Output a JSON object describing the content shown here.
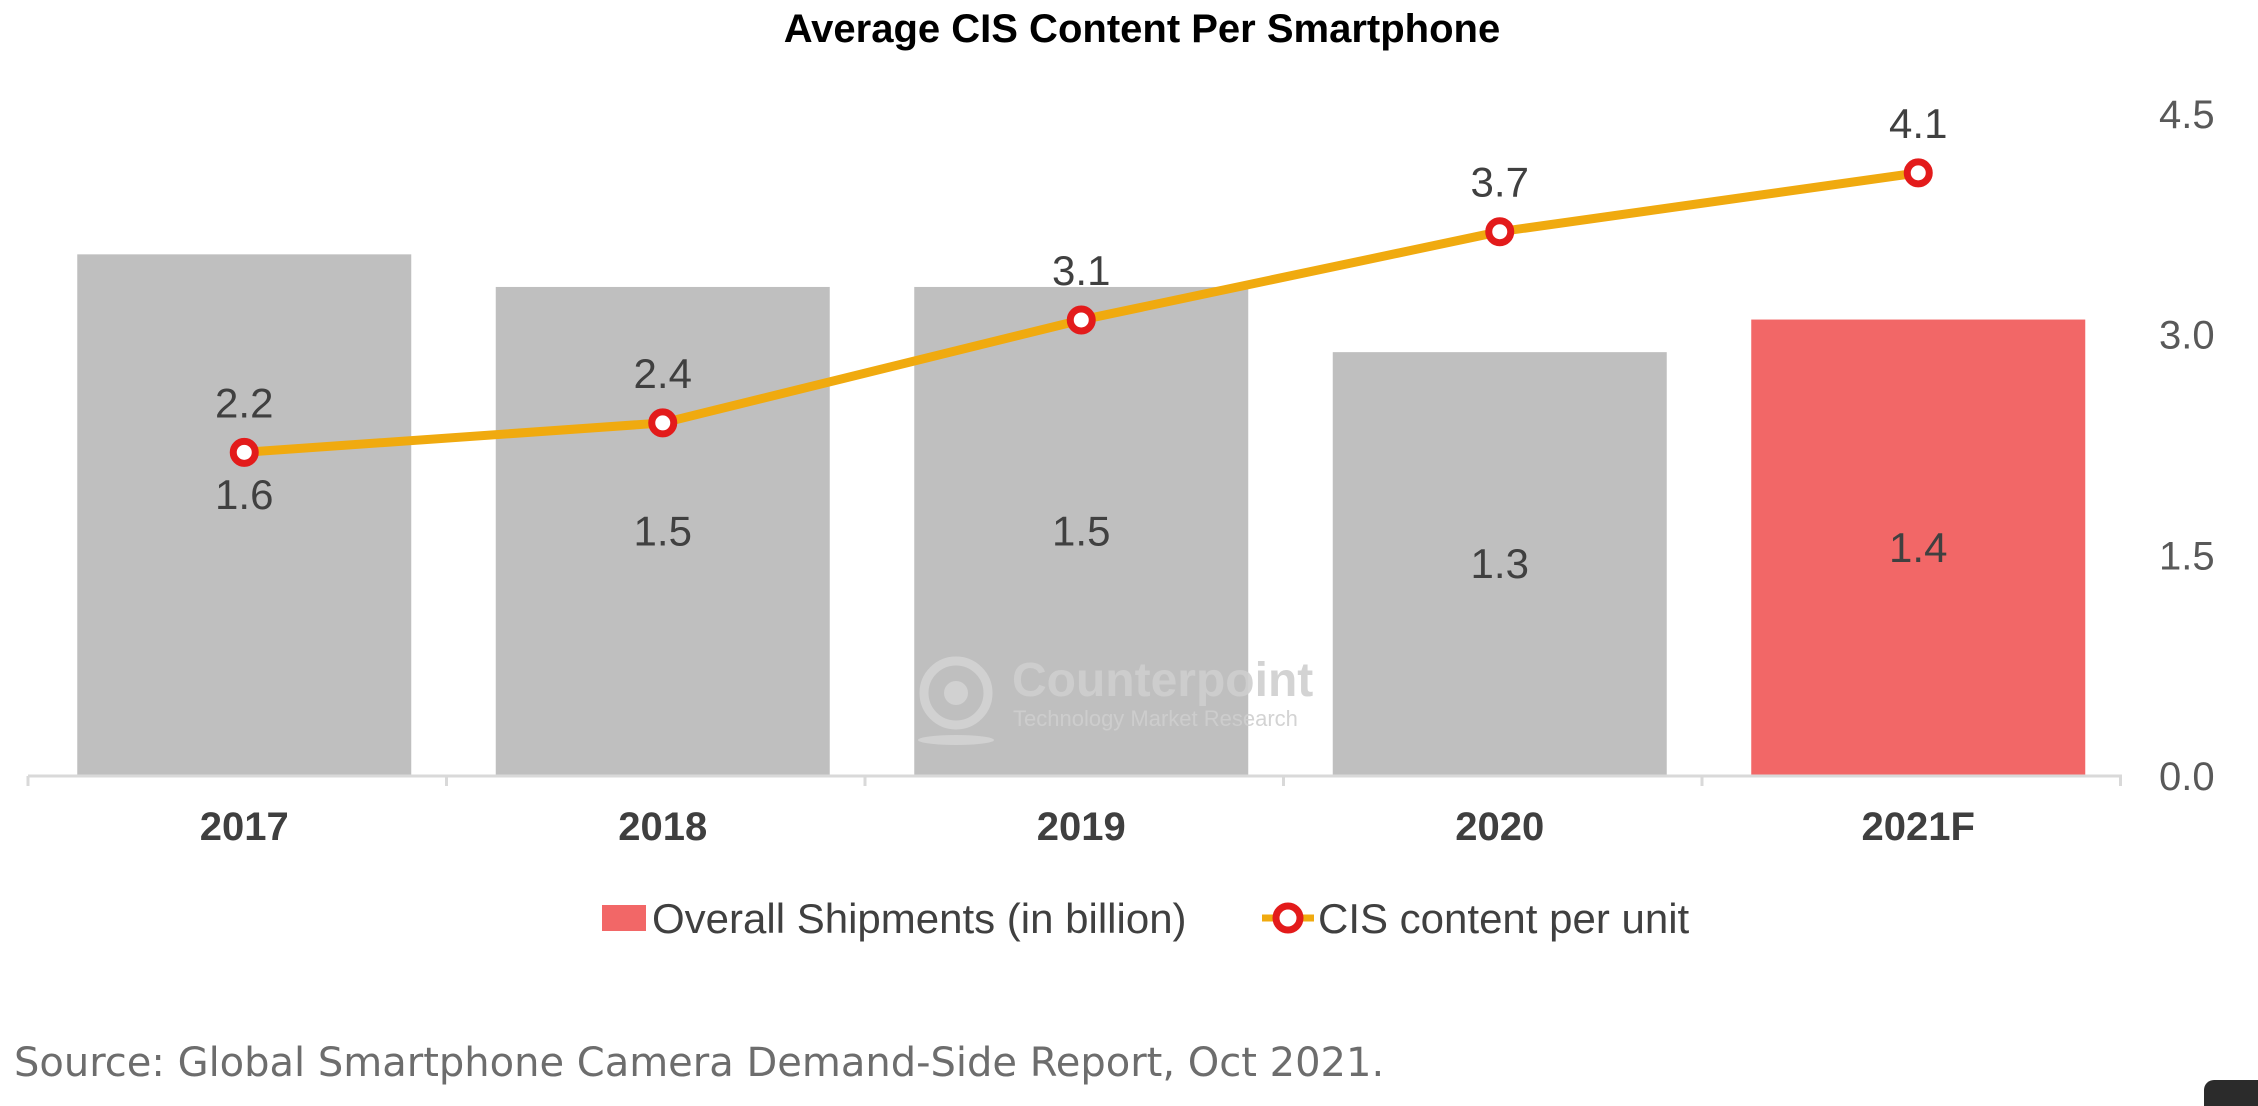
{
  "chart_data": {
    "type": "bar",
    "title": "Average CIS Content Per Smartphone",
    "categories": [
      "2017",
      "2018",
      "2019",
      "2020",
      "2021F"
    ],
    "bar_series": {
      "name": "Overall Shipments (in billion)",
      "values": [
        1.6,
        1.5,
        1.5,
        1.3,
        1.4
      ],
      "value_labels": [
        "1.6",
        "1.5",
        "1.5",
        "1.3",
        "1.4"
      ],
      "colors": [
        "#bfbfbf",
        "#bfbfbf",
        "#bfbfbf",
        "#bfbfbf",
        "#f26767"
      ]
    },
    "line_series": {
      "name": "CIS content per unit",
      "type": "line",
      "values": [
        2.2,
        2.4,
        3.1,
        3.7,
        4.1
      ],
      "value_labels": [
        "2.2",
        "2.4",
        "3.1",
        "3.7",
        "4.1"
      ],
      "line_color": "#f0aa0f",
      "marker_color": "#e31b1b"
    },
    "y_axis": {
      "side": "right",
      "ticks": [
        "0.0",
        "1.5",
        "3.0",
        "4.5"
      ],
      "ylim": [
        0,
        4.5
      ]
    },
    "bar_scale_max": 2.0,
    "grid": false,
    "legend_position": "bottom"
  },
  "watermark": {
    "name": "Counterpoint",
    "tagline": "Technology Market Research"
  },
  "source_note": "Source:  Global Smartphone Camera Demand-Side Report, Oct 2021."
}
